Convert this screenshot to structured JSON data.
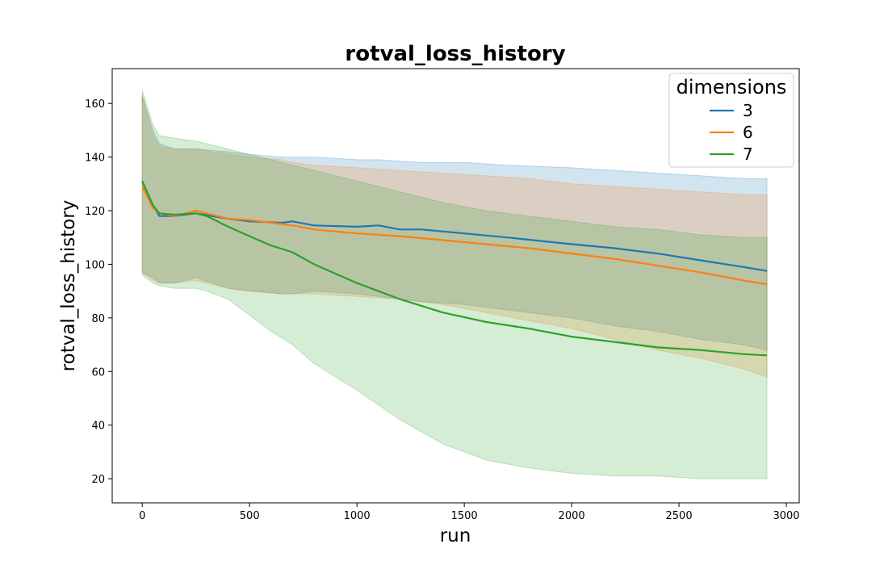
{
  "chart_data": {
    "type": "line",
    "title": "rotval_loss_history",
    "xlabel": "run",
    "ylabel": "rotval_loss_history",
    "xlim": [
      -140,
      3060
    ],
    "ylim": [
      11,
      173
    ],
    "x_ticks": [
      0,
      500,
      1000,
      1500,
      2000,
      2500,
      3000
    ],
    "y_ticks": [
      20,
      40,
      60,
      80,
      100,
      120,
      140,
      160
    ],
    "grid": false,
    "legend": {
      "title": "dimensions",
      "placement": "top-right"
    },
    "series": [
      {
        "name": "3",
        "color": "#1f77b4",
        "x": [
          0,
          50,
          80,
          150,
          250,
          400,
          500,
          650,
          700,
          800,
          1000,
          1100,
          1200,
          1300,
          1500,
          1700,
          2000,
          2200,
          2400,
          2600,
          2800,
          2910
        ],
        "y": [
          131,
          122,
          118,
          118,
          119,
          117,
          116,
          115.5,
          116,
          114.5,
          114,
          114.5,
          113,
          113,
          111.5,
          110,
          107.5,
          106,
          104,
          101.5,
          99,
          97.5
        ],
        "upper": [
          163,
          150,
          145,
          143,
          143,
          142,
          141,
          140,
          140,
          140,
          139,
          139,
          138.5,
          138,
          138,
          137,
          136,
          135,
          134,
          133,
          132,
          132
        ],
        "lower": [
          97,
          95,
          93,
          93,
          95,
          91,
          90,
          89,
          89,
          90,
          89,
          88,
          87,
          86,
          85,
          83,
          80,
          77,
          75,
          72,
          70,
          68
        ]
      },
      {
        "name": "6",
        "color": "#ff7f0e",
        "x": [
          0,
          50,
          80,
          150,
          250,
          400,
          500,
          650,
          700,
          800,
          1000,
          1200,
          1400,
          1600,
          1800,
          2000,
          2200,
          2400,
          2600,
          2800,
          2910
        ],
        "y": [
          129,
          121,
          119,
          118,
          120,
          117,
          116.5,
          115,
          114.5,
          113,
          111.5,
          110.5,
          109,
          107.5,
          106,
          104,
          102,
          99.5,
          97,
          94,
          92.5
        ],
        "upper": [
          163,
          148,
          144,
          143,
          143,
          141,
          140,
          139,
          138,
          137,
          136,
          135,
          134,
          133,
          132,
          130,
          129,
          128,
          127,
          126,
          126
        ],
        "lower": [
          97,
          94,
          93,
          93,
          94,
          91,
          90,
          89,
          89,
          89,
          88,
          87,
          85,
          82,
          79,
          76,
          72,
          68,
          65,
          61,
          58
        ]
      },
      {
        "name": "7",
        "color": "#2ca02c",
        "x": [
          0,
          50,
          80,
          150,
          250,
          300,
          400,
          500,
          600,
          700,
          800,
          1000,
          1200,
          1400,
          1600,
          1800,
          2000,
          2200,
          2400,
          2600,
          2800,
          2910
        ],
        "y": [
          131,
          122,
          119,
          118.5,
          119,
          118,
          114,
          110.5,
          107,
          104.5,
          100,
          93,
          87,
          82,
          78.5,
          76,
          73,
          71,
          69,
          68,
          66.5,
          66
        ],
        "upper": [
          165,
          152,
          148,
          147,
          146,
          145,
          143,
          141,
          139,
          137,
          135,
          131,
          127,
          123,
          120,
          118,
          116,
          114,
          113,
          111,
          110,
          110
        ],
        "lower": [
          96,
          93,
          92,
          91,
          91,
          90,
          87,
          81,
          75,
          70,
          63,
          53,
          42,
          33,
          27,
          24,
          22,
          21,
          21,
          20,
          20,
          20
        ]
      }
    ]
  }
}
